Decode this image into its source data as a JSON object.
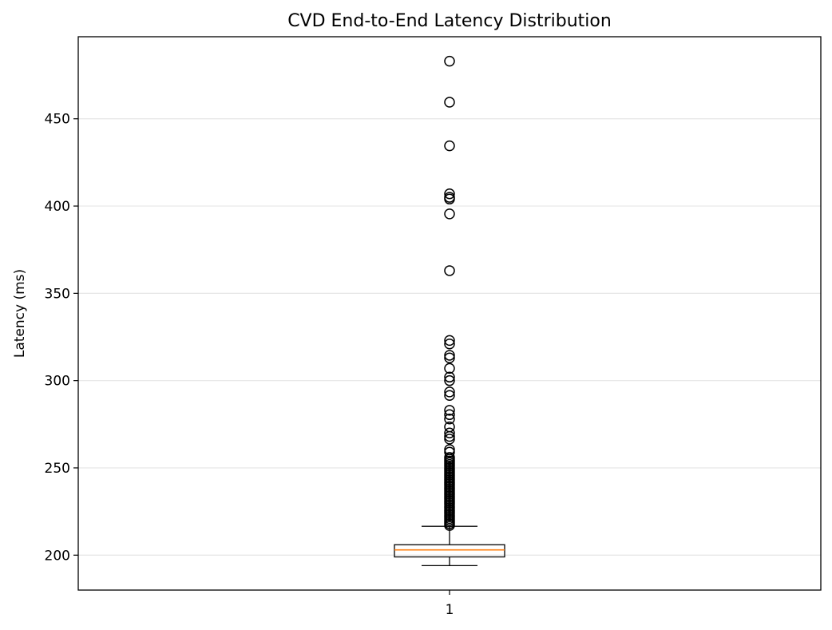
{
  "chart_data": {
    "type": "box",
    "title": "CVD End-to-End Latency Distribution",
    "xlabel": "",
    "ylabel": "Latency (ms)",
    "categories": [
      "1"
    ],
    "ylim": [
      180,
      497
    ],
    "yticks": [
      200,
      250,
      300,
      350,
      400,
      450
    ],
    "grid": "y-axis, light gray",
    "box": {
      "whisker_low": 194,
      "q1": 199,
      "median": 203,
      "q3": 206,
      "whisker_high": 216.5
    },
    "outliers": [
      483,
      459.5,
      434.5,
      407,
      405,
      404,
      395.5,
      363,
      323,
      321,
      314.5,
      313,
      307,
      302,
      300,
      293.5,
      291.5,
      283,
      280.5,
      278,
      273.5,
      270,
      268,
      266.5,
      260.5,
      259,
      256,
      255,
      254,
      253,
      252,
      251,
      250,
      249,
      248,
      247,
      246,
      245,
      244,
      243,
      242,
      241,
      240,
      239,
      238,
      237,
      236,
      235,
      234,
      233,
      232,
      231,
      230,
      229,
      228,
      227,
      226,
      225,
      224,
      223,
      222,
      221,
      220,
      219,
      218,
      217
    ],
    "colors": {
      "median": "#ff7f0e",
      "box": "#000000",
      "grid": "#e6e6e6"
    }
  }
}
